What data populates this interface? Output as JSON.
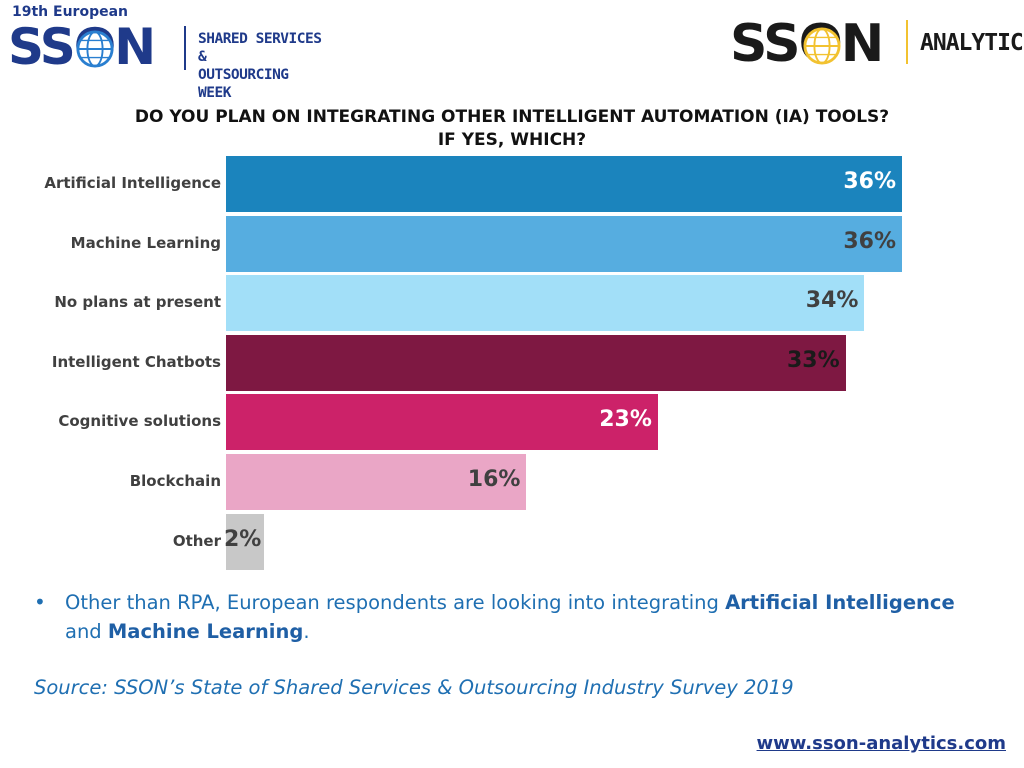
{
  "header": {
    "left_event": "19th European",
    "left_brand": "SSON",
    "left_event_name_line1": "SHARED SERVICES &",
    "left_event_name_line2": "OUTSOURCING WEEK",
    "right_brand": "SSON",
    "right_analytics": "ANALYTICS"
  },
  "colors": {
    "brand_blue": "#1f3a8a",
    "brand_yellow": "#f2c230",
    "text_blue": "#1f6fb2"
  },
  "chart_data": {
    "type": "bar",
    "orientation": "horizontal",
    "title_line1": "DO YOU PLAN ON INTEGRATING OTHER INTELLIGENT AUTOMATION (IA) TOOLS?",
    "title_line2": "IF YES, WHICH?",
    "categories": [
      "Artificial Intelligence",
      "Machine Learning",
      "No plans at present",
      "Intelligent Chatbots",
      "Cognitive solutions",
      "Blockchain",
      "Other"
    ],
    "values": [
      36,
      36,
      34,
      33,
      23,
      16,
      2
    ],
    "value_labels": [
      "36%",
      "36%",
      "34%",
      "33%",
      "23%",
      "16%",
      "2%"
    ],
    "bar_colors": [
      "#1b84bd",
      "#56ade0",
      "#a2dff8",
      "#7e1842",
      "#cc2269",
      "#eaa6c6",
      "#c8c8c8"
    ],
    "label_colors": [
      "#ffffff",
      "#404040",
      "#404040",
      "#1a1a1a",
      "#ffffff",
      "#404040",
      "#404040"
    ],
    "xlim": [
      0,
      36
    ],
    "unit": "%",
    "grid": false
  },
  "bullet": {
    "prefix": "Other than RPA, European respondents are looking into integrating ",
    "bold1": "Artificial Intelligence",
    "middle": " and ",
    "bold2": "Machine Learning",
    "suffix": "."
  },
  "source": "Source: SSON’s State of Shared Services & Outsourcing Industry Survey 2019",
  "website": "www.sson-analytics.com"
}
